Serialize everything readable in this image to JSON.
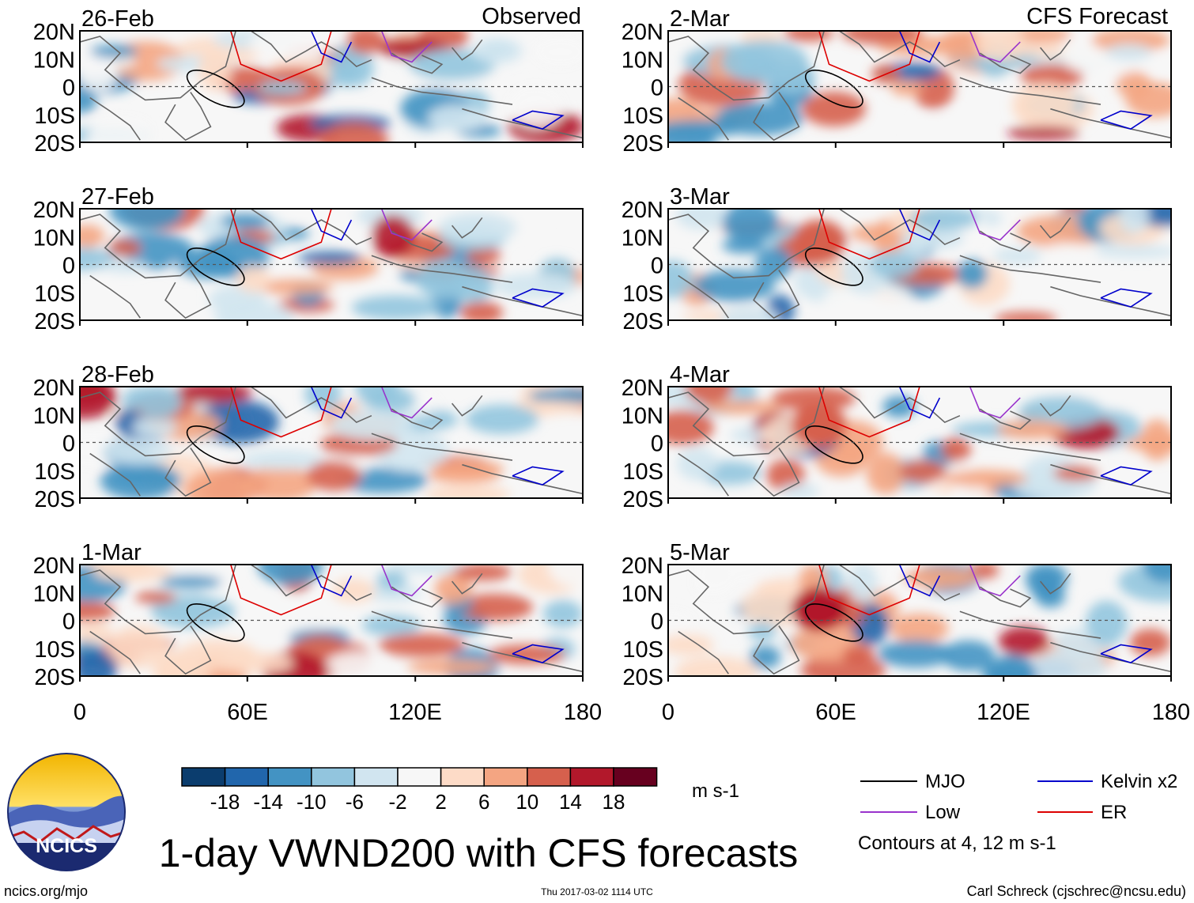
{
  "chart_data": {
    "type": "heatmap",
    "title": "1-day VWND200 with CFS forecasts",
    "variable": "VWND200 (200 hPa meridional wind anomaly)",
    "units": "m s-1",
    "column_headers": [
      "Observed",
      "CFS Forecast"
    ],
    "panels": [
      {
        "date": "26-Feb",
        "column": "Observed"
      },
      {
        "date": "27-Feb",
        "column": "Observed"
      },
      {
        "date": "28-Feb",
        "column": "Observed"
      },
      {
        "date": "1-Mar",
        "column": "Observed"
      },
      {
        "date": "2-Mar",
        "column": "CFS Forecast"
      },
      {
        "date": "3-Mar",
        "column": "CFS Forecast"
      },
      {
        "date": "4-Mar",
        "column": "CFS Forecast"
      },
      {
        "date": "5-Mar",
        "column": "CFS Forecast"
      }
    ],
    "y_ticks": [
      "20N",
      "10N",
      "0",
      "10S",
      "20S"
    ],
    "y_range_deg": [
      -20,
      20
    ],
    "x_ticks": [
      "0",
      "60E",
      "120E",
      "180"
    ],
    "x_range_deg": [
      0,
      180
    ],
    "colorbar": {
      "ticks": [
        "-18",
        "-14",
        "-10",
        "-6",
        "-2",
        "2",
        "6",
        "10",
        "14",
        "18"
      ],
      "colors": [
        "#0b3d6e",
        "#2166ac",
        "#4393c3",
        "#92c5de",
        "#d1e5f0",
        "#f7f7f7",
        "#fddbc7",
        "#f4a582",
        "#d6604d",
        "#b2182b",
        "#67001f"
      ],
      "units_label": "m s-1"
    },
    "contour_legend": [
      {
        "label": "MJO",
        "color": "#000000"
      },
      {
        "label": "Kelvin x2",
        "color": "#0000cc"
      },
      {
        "label": "Low",
        "color": "#9933cc"
      },
      {
        "label": "ER",
        "color": "#dd0000"
      }
    ],
    "contour_note": "Contours at 4, 12 m s-1"
  },
  "logo_text": "NCICS",
  "footer": {
    "left": "ncics.org/mjo",
    "center": "Thu 2017-03-02 1114 UTC",
    "right": "Carl Schreck (cjschrec@ncsu.edu)"
  }
}
